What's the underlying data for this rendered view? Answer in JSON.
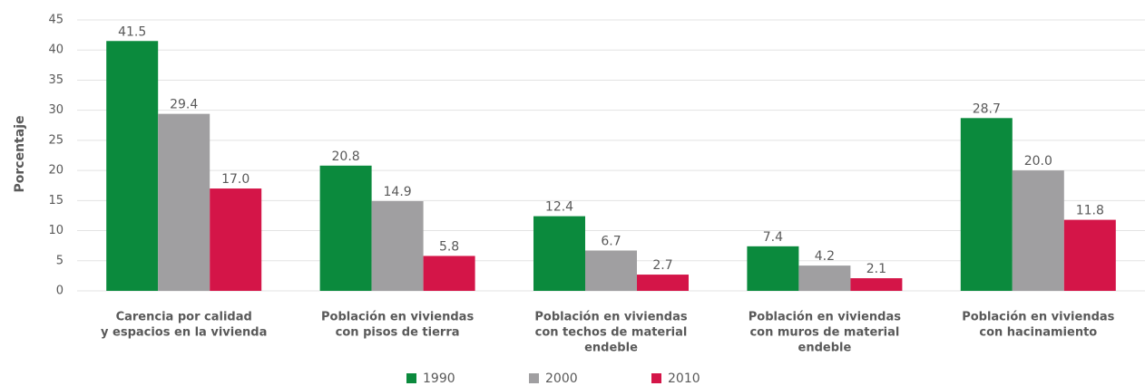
{
  "chart_data": {
    "type": "bar",
    "y_label": "Porcentaje",
    "categories": [
      [
        "Carencia por calidad",
        "y espacios en la vivienda"
      ],
      [
        "Población en viviendas",
        "con pisos de tierra"
      ],
      [
        "Población en viviendas",
        "con techos de material",
        "endeble"
      ],
      [
        "Población en viviendas",
        "con muros de material",
        "endeble"
      ],
      [
        "Población en viviendas",
        "con hacinamiento"
      ]
    ],
    "series": [
      {
        "name": "1990",
        "color": "#0b8a3d",
        "values": [
          41.5,
          20.8,
          12.4,
          7.4,
          28.7
        ],
        "value_labels": [
          "41.5",
          "20.8",
          "12.4",
          "7.4",
          "28.7"
        ]
      },
      {
        "name": "2000",
        "color": "#a09fa1",
        "values": [
          29.4,
          14.9,
          6.7,
          4.2,
          20.0
        ],
        "value_labels": [
          "29.4",
          "14.9",
          "6.7",
          "4.2",
          "20.0"
        ]
      },
      {
        "name": "2010",
        "color": "#d41548",
        "values": [
          17.0,
          5.8,
          2.7,
          2.1,
          11.8
        ],
        "value_labels": [
          "17.0",
          "5.8",
          "2.7",
          "2.1",
          "11.8"
        ]
      }
    ],
    "ylim": [
      0,
      45
    ],
    "yticks": [
      0,
      5,
      10,
      15,
      20,
      25,
      30,
      35,
      40,
      45
    ],
    "grid": true,
    "legend": "bottom"
  }
}
